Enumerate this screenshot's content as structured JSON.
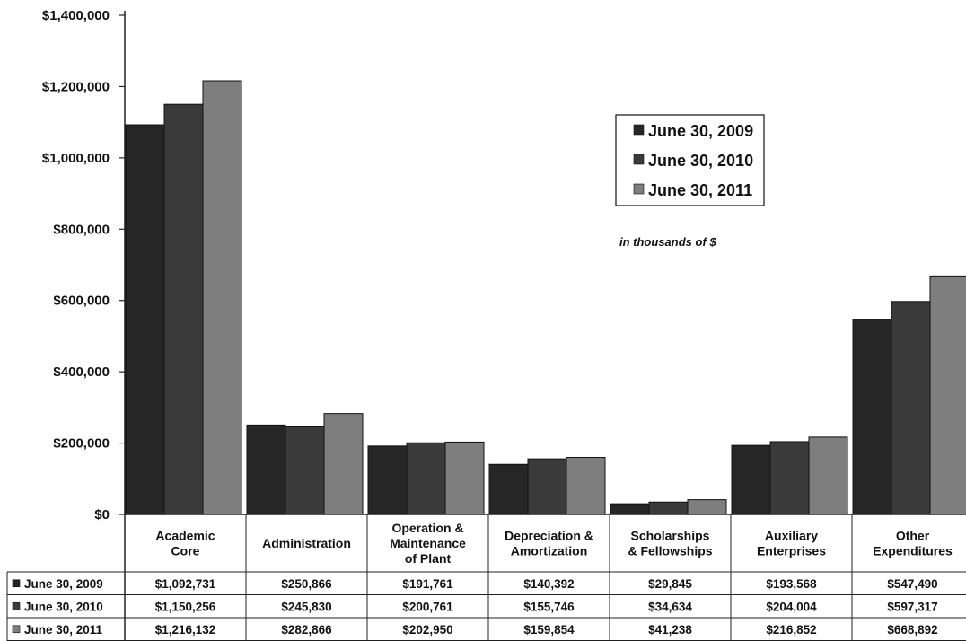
{
  "chart_data": {
    "type": "bar",
    "categories": [
      [
        "Academic",
        "Core"
      ],
      [
        "Administration"
      ],
      [
        "Operation &",
        "Maintenance",
        "of Plant"
      ],
      [
        "Depreciation &",
        "Amortization"
      ],
      [
        "Scholarships",
        "& Fellowships"
      ],
      [
        "Auxiliary",
        "Enterprises"
      ],
      [
        "Other",
        "Expenditures"
      ]
    ],
    "series": [
      {
        "name": "June 30, 2009",
        "color": "#262626",
        "values": [
          1092731,
          250866,
          191761,
          140392,
          29845,
          193568,
          547490
        ],
        "labels": [
          "$1,092,731",
          "$250,866",
          "$191,761",
          "$140,392",
          "$29,845",
          "$193,568",
          "$547,490"
        ]
      },
      {
        "name": "June 30, 2010",
        "color": "#3a3a3a",
        "values": [
          1150256,
          245830,
          200761,
          155746,
          34634,
          204004,
          597317
        ],
        "labels": [
          "$1,150,256",
          "$245,830",
          "$200,761",
          "$155,746",
          "$34,634",
          "$204,004",
          "$597,317"
        ]
      },
      {
        "name": "June 30, 2011",
        "color": "#7e7e7e",
        "values": [
          1216132,
          282866,
          202950,
          159854,
          41238,
          216852,
          668892
        ],
        "labels": [
          "$1,216,132",
          "$282,866",
          "$202,950",
          "$159,854",
          "$41,238",
          "$216,852",
          "$668,892"
        ]
      }
    ],
    "yticks": [
      "$0",
      "$200,000",
      "$400,000",
      "$600,000",
      "$800,000",
      "$1,000,000",
      "$1,200,000",
      "$1,400,000"
    ],
    "ylim": [
      0,
      1400000
    ],
    "annotation": "in thousands  of $",
    "legend_position": "top-right",
    "grid": false
  }
}
